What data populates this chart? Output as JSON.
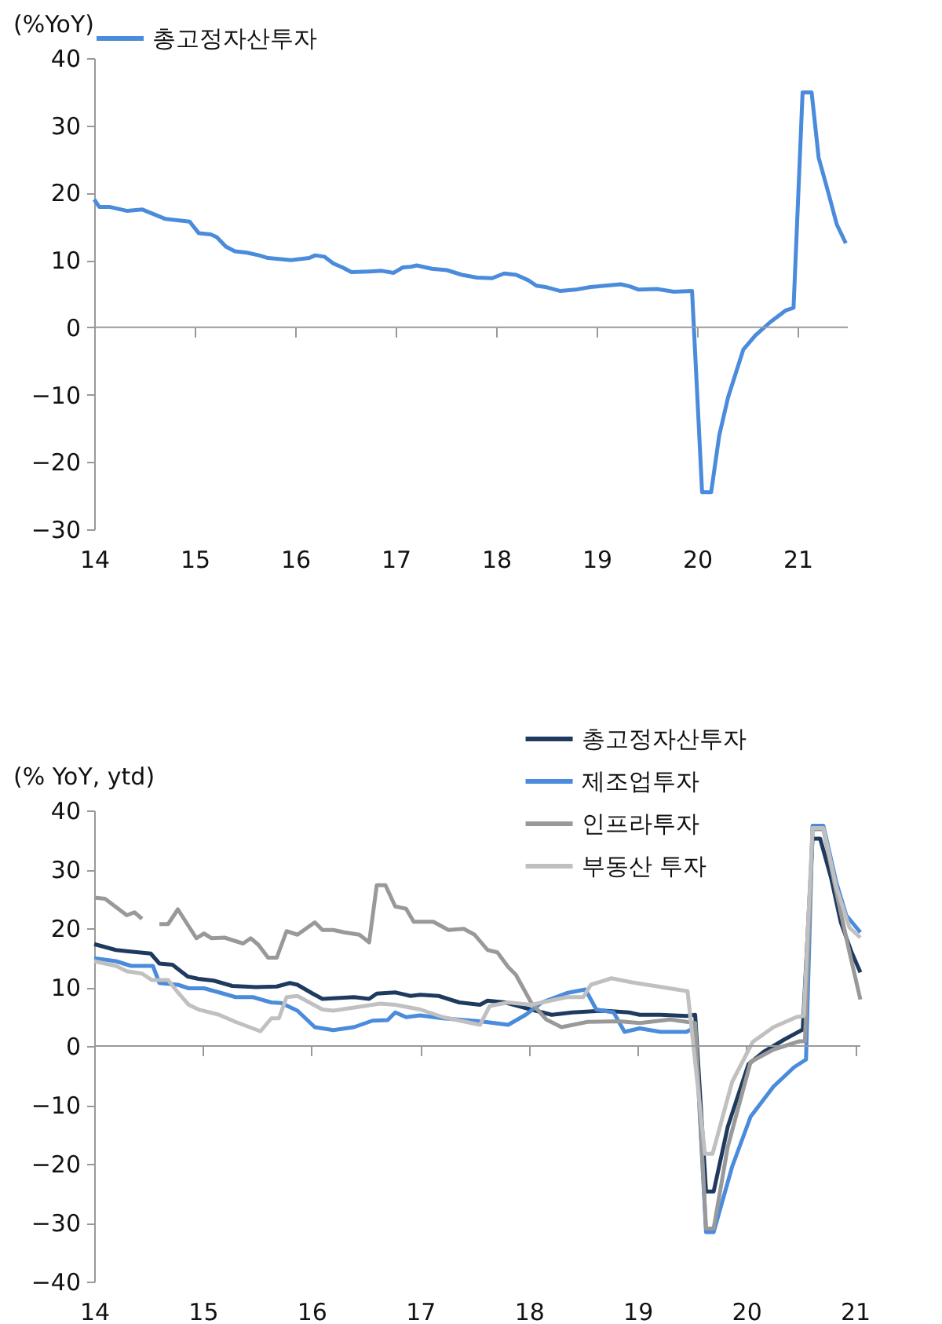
{
  "chart_data": [
    {
      "type": "line",
      "ylabel": "(%YoY)",
      "xlim": [
        14,
        21.5
      ],
      "xticks": [
        14,
        15,
        16,
        17,
        18,
        19,
        20,
        21
      ],
      "ylim": [
        -30,
        40
      ],
      "yticks": [
        -30,
        -20,
        -10,
        0,
        10,
        20,
        30,
        40
      ],
      "grid": false,
      "legend": "top",
      "ref_lines": [
        {
          "axis": "y",
          "value": 0,
          "color": "#999999"
        }
      ],
      "series": [
        {
          "name": "총고정자산투자",
          "color": "#4a8bdc",
          "x": [
            14.0,
            14.05,
            14.15,
            14.33,
            14.48,
            14.71,
            14.95,
            15.04,
            15.16,
            15.22,
            15.31,
            15.4,
            15.52,
            15.64,
            15.73,
            15.96,
            16.14,
            16.2,
            16.29,
            16.38,
            16.47,
            16.56,
            16.74,
            16.86,
            16.98,
            17.07,
            17.15,
            17.21,
            17.36,
            17.51,
            17.66,
            17.81,
            17.96,
            18.08,
            18.2,
            18.32,
            18.4,
            18.49,
            18.64,
            18.79,
            18.94,
            19.09,
            19.24,
            19.33,
            19.42,
            19.6,
            19.77,
            19.95,
            20.05,
            20.14,
            20.22,
            20.31,
            20.46,
            20.58,
            20.73,
            20.88,
            20.96,
            21.05,
            21.14,
            21.21,
            21.31,
            21.39,
            21.48
          ],
          "values": [
            19.0,
            17.9,
            17.9,
            17.3,
            17.5,
            16.1,
            15.7,
            14.0,
            13.8,
            13.4,
            12.0,
            11.3,
            11.1,
            10.7,
            10.3,
            10.0,
            10.3,
            10.7,
            10.5,
            9.5,
            8.9,
            8.2,
            8.3,
            8.4,
            8.1,
            8.9,
            9.0,
            9.2,
            8.7,
            8.5,
            7.8,
            7.4,
            7.3,
            8.0,
            7.8,
            7.0,
            6.2,
            6.0,
            5.4,
            5.6,
            6.0,
            6.2,
            6.4,
            6.1,
            5.6,
            5.7,
            5.3,
            5.4,
            -24.5,
            -24.5,
            -16.1,
            -10.3,
            -3.3,
            -1.2,
            0.8,
            2.5,
            2.9,
            34.9,
            34.9,
            25.2,
            19.8,
            15.3,
            12.5
          ]
        }
      ]
    },
    {
      "type": "line",
      "ylabel": "(% YoY, ytd)",
      "xlim": [
        14,
        21.05
      ],
      "xticks": [
        14,
        15,
        16,
        17,
        18,
        19,
        20,
        21
      ],
      "ylim": [
        -40,
        40
      ],
      "yticks": [
        -40,
        -30,
        -20,
        -10,
        0,
        10,
        20,
        30,
        40
      ],
      "grid": false,
      "legend": "top right",
      "ref_lines": [
        {
          "axis": "y",
          "value": 0,
          "color": "#999999"
        }
      ],
      "series": [
        {
          "name": "총고정자산투자",
          "color": "#1f3a5f",
          "x": [
            14.0,
            14.2,
            14.3,
            14.52,
            14.6,
            14.72,
            14.86,
            14.96,
            15.1,
            15.27,
            15.49,
            15.68,
            15.8,
            15.87,
            16.01,
            16.1,
            16.39,
            16.53,
            16.6,
            16.77,
            16.91,
            17.0,
            17.17,
            17.36,
            17.55,
            17.62,
            17.78,
            18.02,
            18.21,
            18.4,
            18.69,
            18.92,
            19.02,
            19.21,
            19.45,
            19.53,
            19.63,
            19.7,
            19.83,
            20.02,
            20.16,
            20.35,
            20.52,
            20.61,
            20.68,
            20.78,
            20.87,
            20.97,
            21.05
          ],
          "values": [
            17.3,
            16.3,
            16.1,
            15.7,
            14.0,
            13.8,
            11.8,
            11.4,
            11.1,
            10.2,
            10.0,
            10.1,
            10.7,
            10.4,
            8.9,
            8.0,
            8.3,
            8.0,
            8.9,
            9.1,
            8.5,
            8.7,
            8.5,
            7.4,
            7.0,
            7.7,
            7.4,
            6.2,
            5.3,
            5.7,
            6.0,
            5.7,
            5.3,
            5.3,
            5.1,
            5.3,
            -24.7,
            -24.7,
            -13.7,
            -3.1,
            -1.0,
            1.1,
            2.8,
            35.2,
            35.2,
            28.6,
            21.0,
            15.9,
            12.5
          ]
        },
        {
          "name": "제조업투자",
          "color": "#4a8bdc",
          "x": [
            14.0,
            14.2,
            14.34,
            14.54,
            14.6,
            14.77,
            14.87,
            15.01,
            15.15,
            15.3,
            15.46,
            15.63,
            15.72,
            15.87,
            16.03,
            16.2,
            16.39,
            16.56,
            16.7,
            16.77,
            16.87,
            17.0,
            17.21,
            17.55,
            17.81,
            17.97,
            18.12,
            18.35,
            18.52,
            18.62,
            18.78,
            18.88,
            19.02,
            19.21,
            19.45,
            19.53,
            19.63,
            19.7,
            19.87,
            20.04,
            20.25,
            20.44,
            20.55,
            20.61,
            20.71,
            20.83,
            20.92,
            21.05
          ],
          "values": [
            14.9,
            14.4,
            13.6,
            13.6,
            10.7,
            10.4,
            9.8,
            9.8,
            9.1,
            8.3,
            8.3,
            7.4,
            7.3,
            6.0,
            3.2,
            2.7,
            3.2,
            4.3,
            4.4,
            5.7,
            4.9,
            5.2,
            4.7,
            4.2,
            3.6,
            5.3,
            7.4,
            9.0,
            9.6,
            6.2,
            5.7,
            2.4,
            3.0,
            2.4,
            2.4,
            3.2,
            -31.6,
            -31.6,
            -20.5,
            -12.0,
            -6.9,
            -3.6,
            -2.3,
            37.4,
            37.4,
            27.7,
            22.2,
            19.3
          ]
        },
        {
          "name": "인프라투자",
          "color": "#999999",
          "x": [
            14.0,
            14.1,
            14.3,
            14.37,
            14.44,
            14.52,
            14.6,
            14.68,
            14.77,
            14.94,
            15.01,
            15.08,
            15.2,
            15.37,
            15.44,
            15.51,
            15.6,
            15.68,
            15.77,
            15.87,
            16.03,
            16.1,
            16.2,
            16.3,
            16.44,
            16.53,
            16.6,
            16.68,
            16.77,
            16.87,
            16.94,
            17.0,
            17.12,
            17.26,
            17.4,
            17.5,
            17.62,
            17.71,
            17.81,
            17.88,
            18.02,
            18.16,
            18.3,
            18.54,
            18.83,
            19.02,
            19.3,
            19.53,
            19.63,
            19.7,
            19.83,
            20.04,
            20.25,
            20.49,
            20.54,
            20.61,
            20.71,
            20.83,
            20.95,
            21.05
          ],
          "values": [
            25.2,
            25.0,
            22.2,
            22.7,
            21.6,
            null,
            20.7,
            20.7,
            23.2,
            18.3,
            19.1,
            18.3,
            18.4,
            17.4,
            18.3,
            17.2,
            15.0,
            15.0,
            19.5,
            18.9,
            21.0,
            19.7,
            19.7,
            19.3,
            18.9,
            17.6,
            27.3,
            27.3,
            23.7,
            23.3,
            21.1,
            21.1,
            21.1,
            19.7,
            19.9,
            18.9,
            16.3,
            15.9,
            13.4,
            12.1,
            7.4,
            4.5,
            3.2,
            4.1,
            4.2,
            3.9,
            4.5,
            3.9,
            -31.0,
            -31.0,
            -17.1,
            -2.7,
            -0.6,
            0.8,
            0.8,
            36.8,
            36.8,
            26.0,
            15.9,
            7.9
          ]
        },
        {
          "name": "부동산 투자",
          "color": "#c0c0c0",
          "x": [
            14.0,
            14.2,
            14.3,
            14.44,
            14.53,
            14.68,
            14.77,
            14.87,
            14.96,
            15.15,
            15.3,
            15.53,
            15.63,
            15.7,
            15.77,
            15.87,
            16.1,
            16.2,
            16.49,
            16.63,
            16.77,
            17.0,
            17.21,
            17.55,
            17.64,
            17.81,
            18.02,
            18.35,
            18.5,
            18.57,
            18.76,
            18.95,
            19.19,
            19.46,
            19.62,
            19.69,
            19.87,
            20.06,
            20.25,
            20.46,
            20.53,
            20.61,
            20.71,
            20.83,
            20.95,
            21.05
          ],
          "values": [
            14.4,
            13.6,
            12.7,
            12.3,
            11.2,
            11.2,
            9.1,
            7.0,
            6.2,
            5.3,
            4.1,
            2.5,
            4.7,
            4.7,
            8.3,
            8.5,
            6.2,
            6.0,
            6.8,
            7.2,
            7.0,
            6.2,
            4.9,
            3.6,
            6.8,
            7.4,
            7.0,
            8.3,
            8.3,
            10.4,
            11.5,
            10.8,
            10.1,
            9.3,
            -18.3,
            -18.3,
            -6.1,
            0.7,
            3.2,
            4.9,
            5.1,
            37.0,
            37.0,
            26.9,
            20.1,
            18.4
          ]
        }
      ]
    }
  ]
}
